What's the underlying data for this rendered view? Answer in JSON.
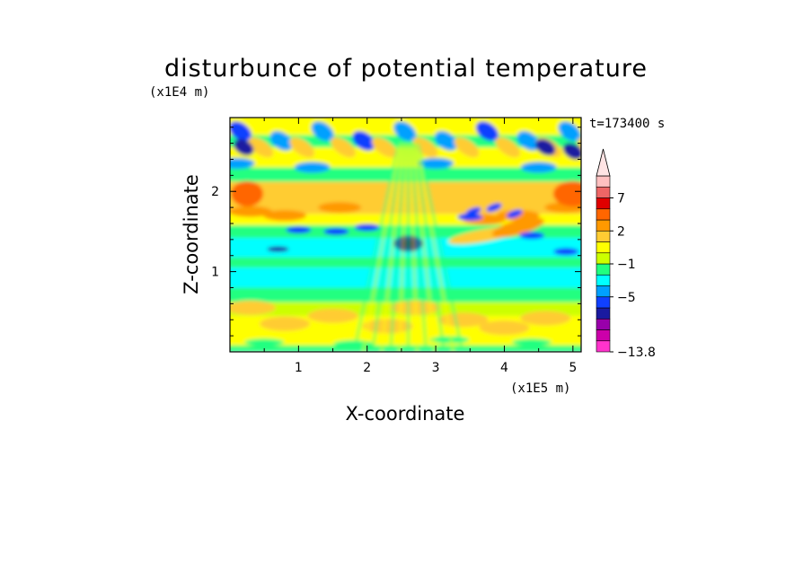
{
  "chart_data": {
    "type": "heatmap",
    "title": "disturbunce of potential temperature",
    "xlabel": "X-coordinate",
    "ylabel": "Z-coordinate",
    "x_scale_label": "(x1E5 m)",
    "y_scale_label": "(x1E4 m)",
    "time_label": "t=173400 s",
    "xlim": [
      0,
      5.12
    ],
    "ylim": [
      0,
      2.92
    ],
    "x_ticks": [
      {
        "value": 1,
        "label": "1"
      },
      {
        "value": 2,
        "label": "2"
      },
      {
        "value": 3,
        "label": "3"
      },
      {
        "value": 4,
        "label": "4"
      },
      {
        "value": 5,
        "label": "5"
      }
    ],
    "y_ticks": [
      {
        "value": 1,
        "label": "1"
      },
      {
        "value": 2,
        "label": "2"
      }
    ],
    "colorbar": {
      "levels": [
        {
          "color": "#ff33cc"
        },
        {
          "color": "#cc00aa"
        },
        {
          "color": "#9900aa"
        },
        {
          "color": "#1a1aa0"
        },
        {
          "color": "#1040ff"
        },
        {
          "color": "#00a0ff"
        },
        {
          "color": "#00ffff"
        },
        {
          "color": "#20ff80"
        },
        {
          "color": "#ccff00"
        },
        {
          "color": "#ffff00"
        },
        {
          "color": "#ffcc33"
        },
        {
          "color": "#ff9900"
        },
        {
          "color": "#ff6600"
        },
        {
          "color": "#e00000"
        },
        {
          "color": "#ee6666"
        },
        {
          "color": "#ffc0c0"
        }
      ],
      "labels": [
        {
          "text": "7",
          "after_index": 13
        },
        {
          "text": "2",
          "after_index": 10
        },
        {
          "text": "−1",
          "after_index": 7
        },
        {
          "text": "−5",
          "after_index": 4
        },
        {
          "text": "−13.8",
          "after_index": 0
        }
      ]
    }
  }
}
